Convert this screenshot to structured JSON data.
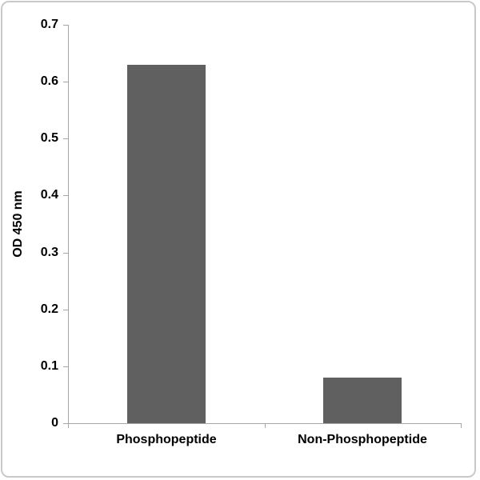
{
  "chart_data": {
    "type": "bar",
    "title": "",
    "categories": [
      "Phosphopeptide",
      "Non-Phosphopeptide"
    ],
    "values": [
      0.63,
      0.08
    ],
    "xlabel": "",
    "ylabel": "OD 450 nm",
    "ylim": [
      0,
      0.7
    ],
    "ytick_step": 0.1,
    "ytick_labels": [
      "0",
      "0.1",
      "0.2",
      "0.3",
      "0.4",
      "0.5",
      "0.6",
      "0.7"
    ],
    "grid": false,
    "legend": null,
    "bar_color": "#606060",
    "axis_color": "#a6a6a6",
    "text_color": "#000000",
    "frame_color": "#c9c9c9",
    "background_color": "#ffffff"
  }
}
